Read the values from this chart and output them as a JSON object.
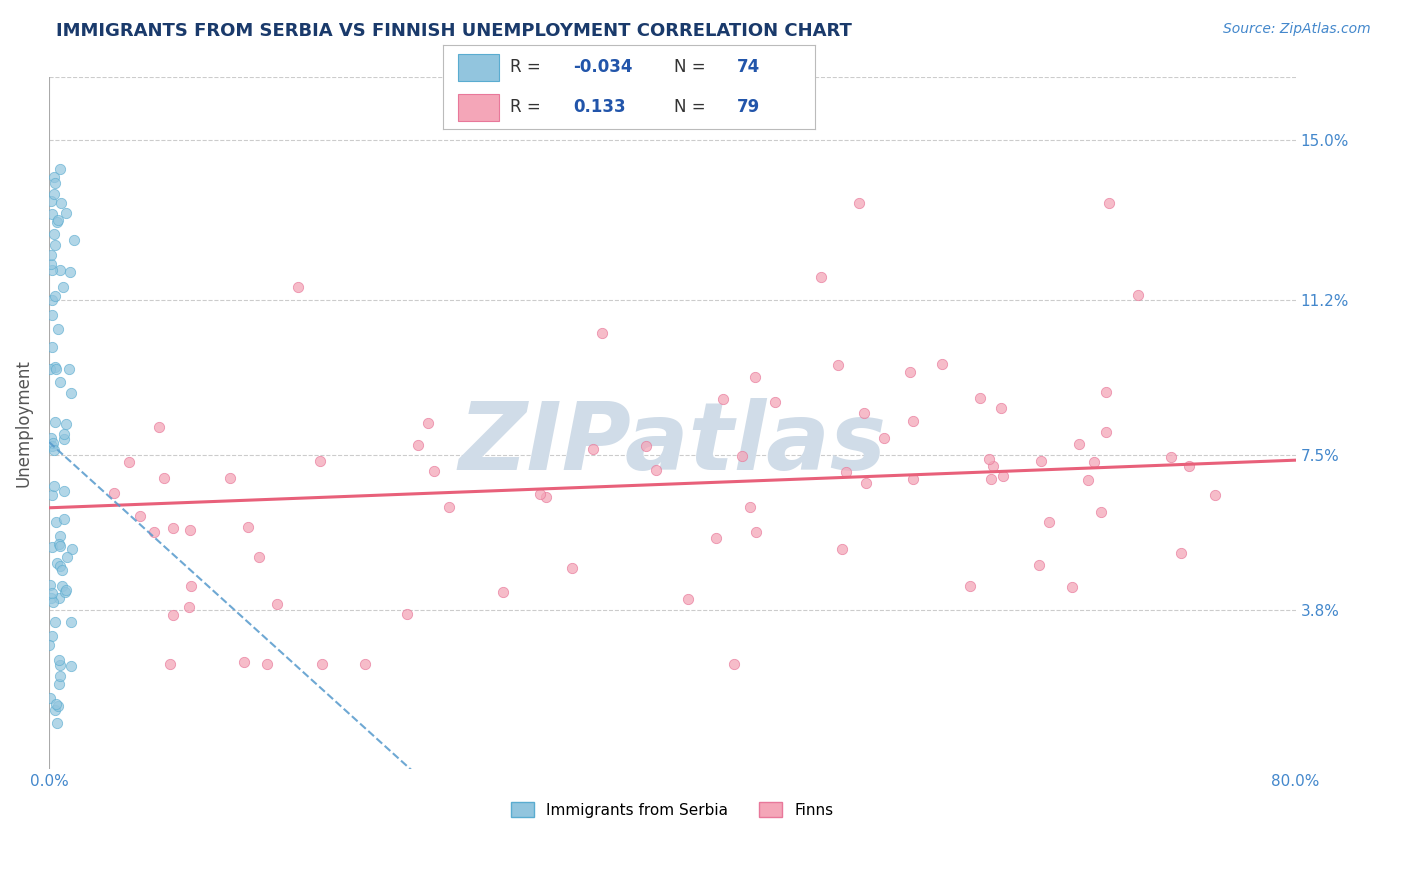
{
  "title": "IMMIGRANTS FROM SERBIA VS FINNISH UNEMPLOYMENT CORRELATION CHART",
  "source_text": "Source: ZipAtlas.com",
  "ylabel": "Unemployment",
  "xlim": [
    0.0,
    0.8
  ],
  "ylim": [
    0.0,
    0.165
  ],
  "ytick_vals": [
    0.038,
    0.075,
    0.112,
    0.15
  ],
  "ytick_labels": [
    "3.8%",
    "7.5%",
    "11.2%",
    "15.0%"
  ],
  "serbia_R": -0.034,
  "serbia_N": 74,
  "finns_R": 0.133,
  "finns_N": 79,
  "serbia_color": "#92C5DE",
  "serbia_edge_color": "#5AACD0",
  "finns_color": "#F4A6B8",
  "finns_edge_color": "#E8789A",
  "serbia_line_color": "#5599CC",
  "finns_line_color": "#E8607A",
  "background_color": "#ffffff",
  "grid_color": "#cccccc",
  "title_color": "#1a3a6b",
  "source_color": "#4488cc",
  "tick_label_color": "#4488cc",
  "ylabel_color": "#555555",
  "watermark_color": "#d0dce8",
  "legend_r_val_color": "#2255aa",
  "legend_n_val_color": "#2255aa",
  "legend_text_color": "#333333"
}
